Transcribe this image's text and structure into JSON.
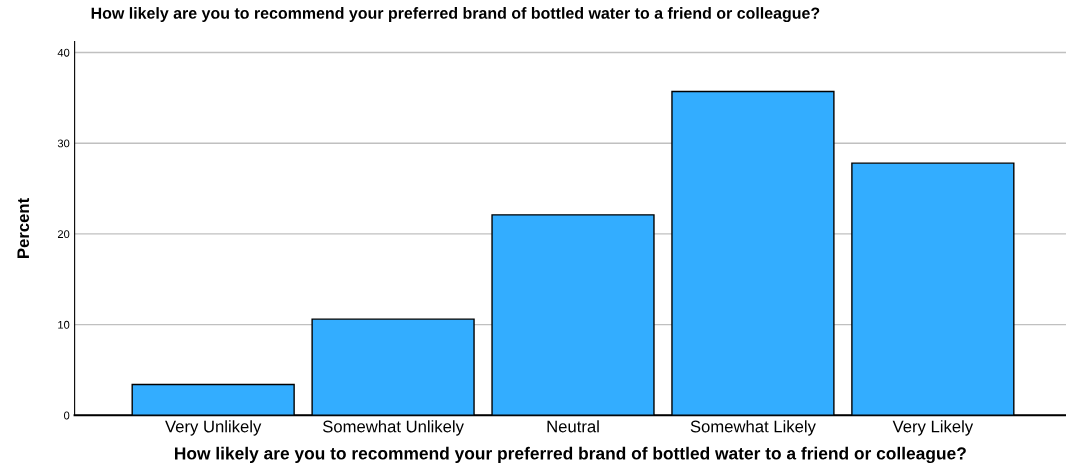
{
  "chart_data": {
    "type": "bar",
    "title": "How likely are you to recommend your preferred brand of bottled water to a friend or colleague?",
    "xlabel": "How likely are you to recommend your preferred brand of bottled water to a friend or colleague?",
    "ylabel": "Percent",
    "categories": [
      "Very Unlikely",
      "Somewhat Unlikely",
      "Neutral",
      "Somewhat Likely",
      "Very Likely"
    ],
    "values": [
      3.4,
      10.6,
      22.1,
      35.7,
      27.8
    ],
    "color": "#33adff",
    "ylim": [
      0,
      41.2
    ],
    "yticks": [
      0,
      10,
      20,
      30,
      40
    ],
    "grid": "y"
  }
}
